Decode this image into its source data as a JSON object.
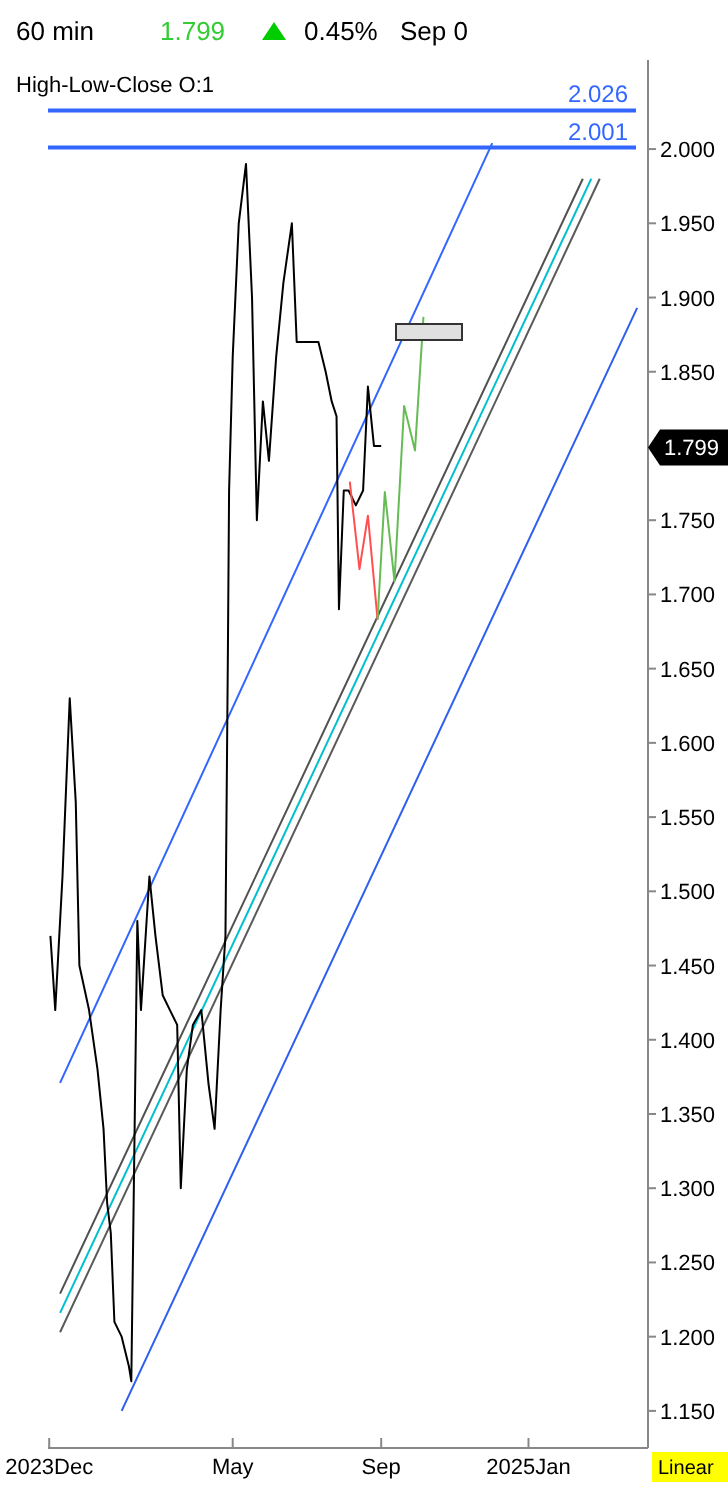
{
  "chart_data": {
    "type": "line",
    "title": "60 min",
    "subtitle": "High-Low-Close  O:1",
    "annotations": [
      "1.799",
      "0.45%",
      "Sep 0",
      "Linear",
      {
        "text": "1.799",
        "y": 1.799
      }
    ],
    "xlim": [
      "2023-11-30",
      "2025-04-10"
    ],
    "xticks": [
      {
        "value": "2023-12-01",
        "label": "2023Dec"
      },
      {
        "value": "2024-05-01",
        "label": "May"
      },
      {
        "value": "2024-09-01",
        "label": "Sep"
      },
      {
        "value": "2025-01-01",
        "label": "2025Jan"
      }
    ],
    "ylim": [
      1.125,
      2.06
    ],
    "yticks": [
      {
        "value": 1.15,
        "label": "1.150"
      },
      {
        "value": 1.2,
        "label": "1.200"
      },
      {
        "value": 1.25,
        "label": "1.250"
      },
      {
        "value": 1.3,
        "label": "1.300"
      },
      {
        "value": 1.35,
        "label": "1.350"
      },
      {
        "value": 1.4,
        "label": "1.400"
      },
      {
        "value": 1.45,
        "label": "1.450"
      },
      {
        "value": 1.5,
        "label": "1.500"
      },
      {
        "value": 1.55,
        "label": "1.550"
      },
      {
        "value": 1.6,
        "label": "1.600"
      },
      {
        "value": 1.65,
        "label": "1.650"
      },
      {
        "value": 1.7,
        "label": "1.700"
      },
      {
        "value": 1.75,
        "label": "1.750"
      },
      {
        "value": 1.85,
        "label": "1.850"
      },
      {
        "value": 1.9,
        "label": "1.900"
      },
      {
        "value": 1.95,
        "label": "1.950"
      },
      {
        "value": 2.0,
        "label": "2.000"
      }
    ],
    "grid": false,
    "marker": "none",
    "ref_lines": [
      {
        "axis": "y",
        "value": 2.026,
        "label": "2.026",
        "color": "#3366ff"
      },
      {
        "axis": "y",
        "value": 2.001,
        "label": "2.001",
        "color": "#3366ff"
      }
    ],
    "series": [
      {
        "color": "#3366ff",
        "x": [
          "2023-12-10",
          "2024-12-02"
        ],
        "values": [
          1.371,
          2.004
        ]
      },
      {
        "color": "#2f5fee",
        "x": [
          "2024-01-30",
          "2025-04-01"
        ],
        "values": [
          1.15,
          1.893
        ]
      },
      {
        "color": "#505050",
        "x": [
          "2023-12-10",
          "2025-02-15"
        ],
        "values": [
          1.229,
          1.98
        ]
      },
      {
        "color": "#00c0d0",
        "x": [
          "2023-12-10",
          "2025-02-22"
        ],
        "values": [
          1.216,
          1.98
        ]
      },
      {
        "color": "#5a5a5a",
        "x": [
          "2023-12-10",
          "2025-03-01"
        ],
        "values": [
          1.203,
          1.98
        ]
      },
      {
        "color": "#000000",
        "x": [
          "2023-12-02",
          "2023-12-06",
          "2023-12-12",
          "2023-12-18",
          "2023-12-23",
          "2023-12-26",
          "2024-01-03",
          "2024-01-10",
          "2024-01-15",
          "2024-01-18",
          "2024-01-21",
          "2024-01-24",
          "2024-01-30",
          "2024-02-05",
          "2024-02-07",
          "2024-02-12",
          "2024-02-15",
          "2024-02-22",
          "2024-02-27",
          "2024-03-04",
          "2024-03-10",
          "2024-03-16",
          "2024-03-19",
          "2024-03-24",
          "2024-03-29",
          "2024-04-05",
          "2024-04-11",
          "2024-04-16",
          "2024-04-21",
          "2024-04-25",
          "2024-04-27",
          "2024-04-28",
          "2024-05-01",
          "2024-05-06",
          "2024-05-12",
          "2024-05-17",
          "2024-05-21",
          "2024-05-26",
          "2024-05-31",
          "2024-06-06",
          "2024-06-12",
          "2024-06-19",
          "2024-06-23",
          "2024-06-29",
          "2024-07-05",
          "2024-07-11",
          "2024-07-17",
          "2024-07-22",
          "2024-07-26",
          "2024-07-28",
          "2024-08-01",
          "2024-08-05",
          "2024-08-11",
          "2024-08-17",
          "2024-08-21",
          "2024-08-26",
          "2024-09-01"
        ],
        "values": [
          1.47,
          1.42,
          1.51,
          1.63,
          1.56,
          1.45,
          1.42,
          1.38,
          1.34,
          1.29,
          1.27,
          1.21,
          1.2,
          1.18,
          1.17,
          1.48,
          1.42,
          1.51,
          1.47,
          1.43,
          1.42,
          1.41,
          1.3,
          1.38,
          1.41,
          1.42,
          1.37,
          1.34,
          1.42,
          1.47,
          1.66,
          1.77,
          1.86,
          1.95,
          1.99,
          1.9,
          1.75,
          1.83,
          1.79,
          1.86,
          1.91,
          1.95,
          1.87,
          1.87,
          1.87,
          1.87,
          1.85,
          1.83,
          1.82,
          1.69,
          1.77,
          1.77,
          1.76,
          1.77,
          1.84,
          1.8,
          1.8
        ]
      },
      {
        "color": "#ff5050",
        "x": [
          "2024-08-06",
          "2024-08-14",
          "2024-08-21",
          "2024-08-29"
        ],
        "values": [
          1.776,
          1.717,
          1.753,
          1.683
        ]
      },
      {
        "color": "#66bb55",
        "x": [
          "2024-08-29",
          "2024-09-04",
          "2024-09-12",
          "2024-09-20",
          "2024-09-29",
          "2024-10-06"
        ],
        "values": [
          1.683,
          1.769,
          1.709,
          1.827,
          1.797,
          1.887
        ]
      }
    ]
  }
}
